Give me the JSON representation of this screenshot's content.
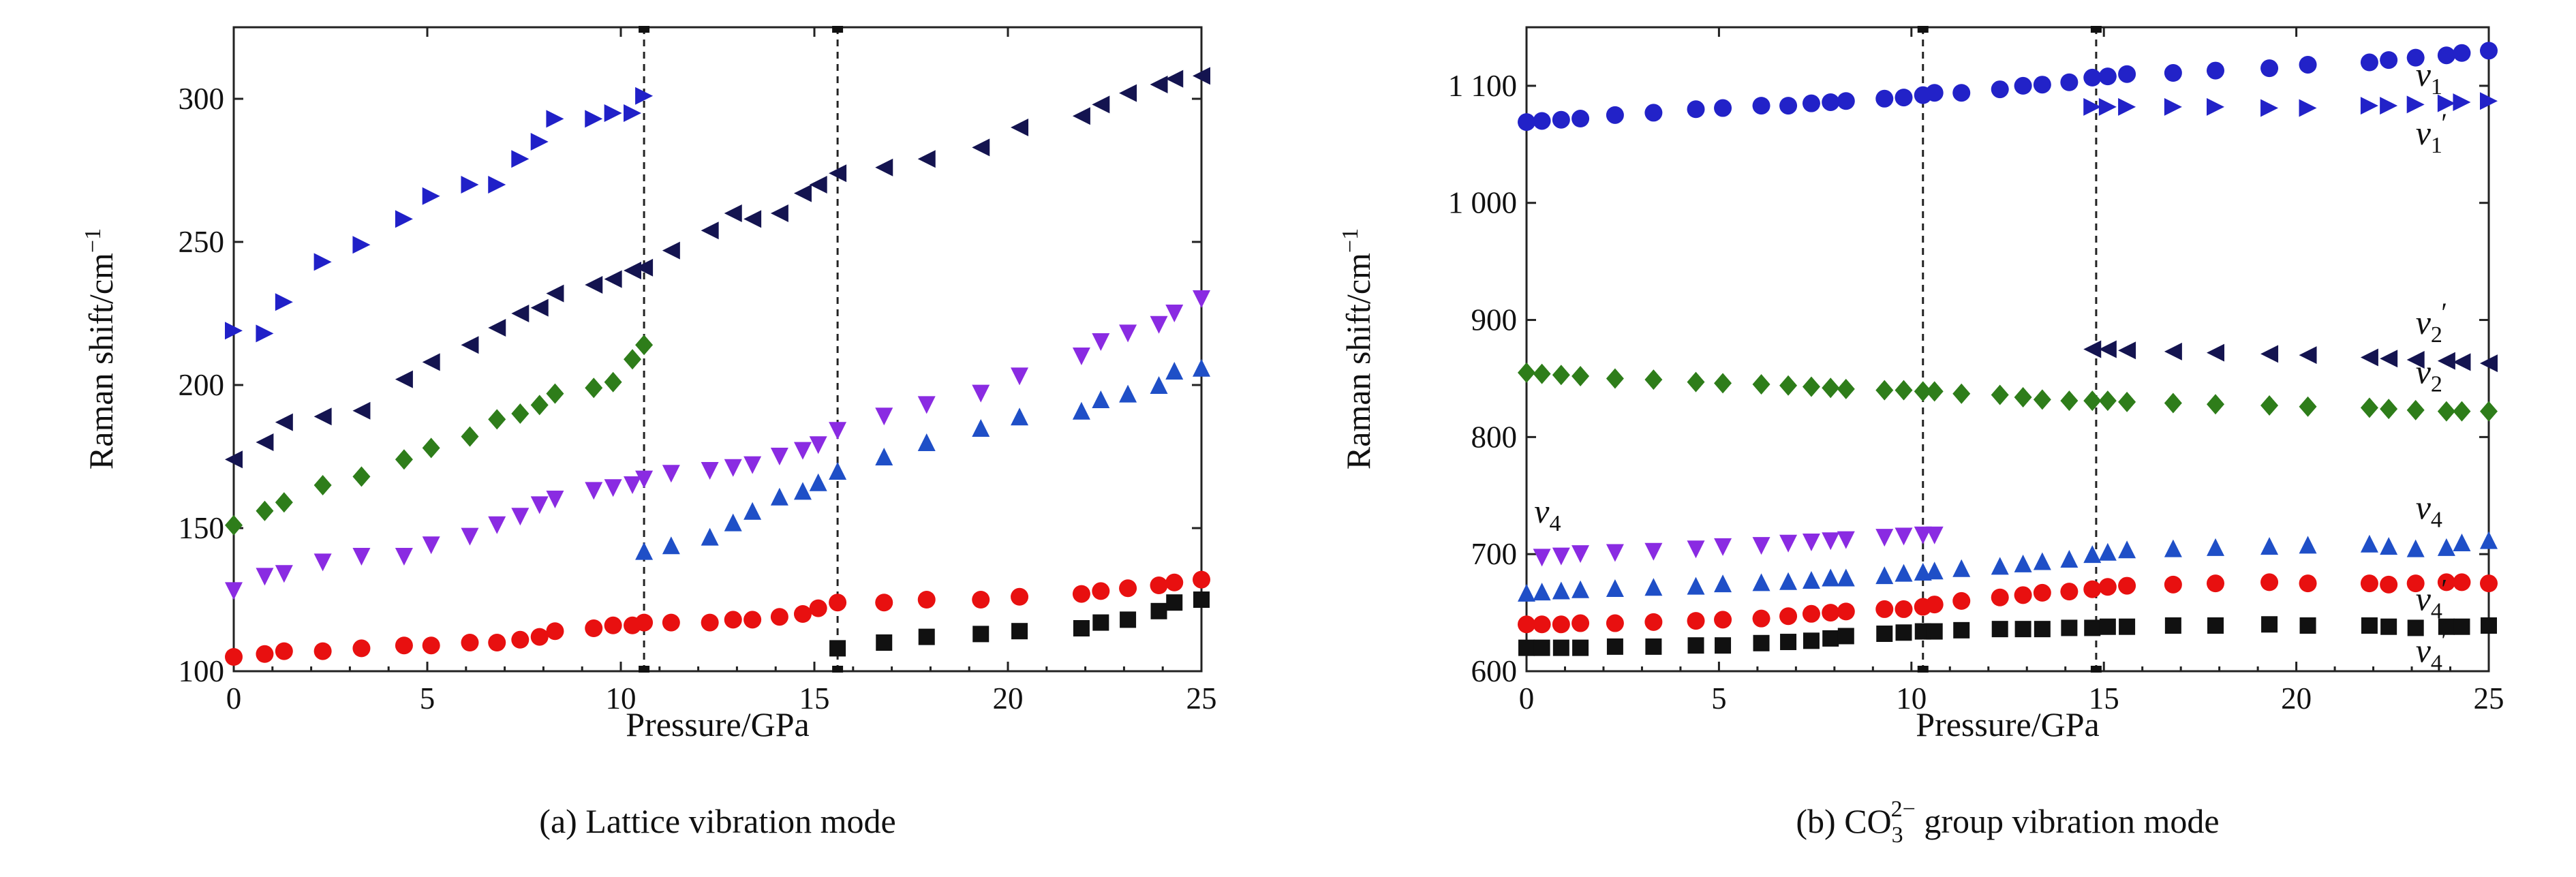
{
  "chart_data": [
    {
      "type": "scatter",
      "panel": "a",
      "caption": "(a) Lattice vibration mode",
      "xlabel": "Pressure/GPa",
      "ylabel": "Raman shift/cm",
      "ylabel_sup": "−1",
      "xlim": [
        0,
        25
      ],
      "ylim": [
        100,
        325
      ],
      "xticks": [
        0,
        5,
        10,
        15,
        20,
        25
      ],
      "yticks": [
        100,
        150,
        200,
        250,
        300
      ],
      "ytick_labels": [
        "100",
        "150",
        "200",
        "250",
        "300"
      ],
      "dashed_lines_x": [
        10.6,
        15.6
      ],
      "series": [
        {
          "marker": "triangle-right",
          "color": "#2020c8",
          "x": [
            0,
            0.8,
            1.3,
            2.3,
            3.3,
            4.4,
            5.1,
            6.1,
            6.8,
            7.4,
            7.9,
            8.3,
            9.3,
            9.8,
            10.3,
            10.6
          ],
          "y": [
            219,
            218,
            229,
            243,
            249,
            258,
            266,
            270,
            270,
            279,
            285,
            293,
            293,
            295,
            295,
            301
          ]
        },
        {
          "marker": "triangle-left",
          "color": "#141450",
          "x": [
            0,
            0.8,
            1.3,
            2.3,
            3.3,
            4.4,
            5.1,
            6.1,
            6.8,
            7.4,
            7.9,
            8.3,
            9.3,
            9.8,
            10.3,
            10.6,
            11.3,
            12.3,
            12.9,
            13.4,
            14.1,
            14.7,
            15.1,
            15.6,
            16.8,
            17.9,
            19.3,
            20.3,
            21.9,
            22.4,
            23.1,
            23.9,
            24.3,
            25
          ],
          "y": [
            174,
            180,
            187,
            189,
            191,
            202,
            208,
            214,
            220,
            225,
            227,
            232,
            235,
            237,
            240,
            241,
            247,
            254,
            260,
            258,
            260,
            267,
            270,
            274,
            276,
            279,
            283,
            290,
            294,
            298,
            302,
            305,
            307,
            308
          ]
        },
        {
          "marker": "diamond",
          "color": "#2e7d1a",
          "x": [
            0,
            0.8,
            1.3,
            2.3,
            3.3,
            4.4,
            5.1,
            6.1,
            6.8,
            7.4,
            7.9,
            8.3,
            9.3,
            9.8,
            10.3,
            10.6
          ],
          "y": [
            151,
            156,
            159,
            165,
            168,
            174,
            178,
            182,
            188,
            190,
            193,
            197,
            199,
            201,
            209,
            214
          ]
        },
        {
          "marker": "triangle-down",
          "color": "#8a2be2",
          "x": [
            0,
            0.8,
            1.3,
            2.3,
            3.3,
            4.4,
            5.1,
            6.1,
            6.8,
            7.4,
            7.9,
            8.3,
            9.3,
            9.8,
            10.3,
            10.6,
            11.3,
            12.3,
            12.9,
            13.4,
            14.1,
            14.7,
            15.1,
            15.6,
            16.8,
            17.9,
            19.3,
            20.3,
            21.9,
            22.4,
            23.1,
            23.9,
            24.3,
            25
          ],
          "y": [
            128,
            133,
            134,
            138,
            140,
            140,
            144,
            147,
            151,
            154,
            158,
            160,
            163,
            164,
            165,
            167,
            169,
            170,
            171,
            172,
            175,
            177,
            179,
            184,
            189,
            193,
            197,
            203,
            210,
            215,
            218,
            221,
            225,
            230
          ]
        },
        {
          "marker": "triangle-up",
          "color": "#1f4fc7",
          "x": [
            10.6,
            11.3,
            12.3,
            12.9,
            13.4,
            14.1,
            14.7,
            15.1,
            15.6,
            16.8,
            17.9,
            19.3,
            20.3,
            21.9,
            22.4,
            23.1,
            23.9,
            24.3,
            25
          ],
          "y": [
            142,
            144,
            147,
            152,
            156,
            161,
            163,
            166,
            170,
            175,
            180,
            185,
            189,
            191,
            195,
            197,
            200,
            205,
            206
          ]
        },
        {
          "marker": "circle",
          "color": "#e81010",
          "x": [
            0,
            0.8,
            1.3,
            2.3,
            3.3,
            4.4,
            5.1,
            6.1,
            6.8,
            7.4,
            7.9,
            8.3,
            9.3,
            9.8,
            10.3,
            10.6,
            11.3,
            12.3,
            12.9,
            13.4,
            14.1,
            14.7,
            15.1,
            15.6,
            16.8,
            17.9,
            19.3,
            20.3,
            21.9,
            22.4,
            23.1,
            23.9,
            24.3,
            25
          ],
          "y": [
            105,
            106,
            107,
            107,
            108,
            109,
            109,
            110,
            110,
            111,
            112,
            114,
            115,
            116,
            116,
            117,
            117,
            117,
            118,
            118,
            119,
            120,
            122,
            124,
            124,
            125,
            125,
            126,
            127,
            128,
            129,
            130,
            131,
            132
          ]
        },
        {
          "marker": "square",
          "color": "#111111",
          "x": [
            15.6,
            16.8,
            17.9,
            19.3,
            20.3,
            21.9,
            22.4,
            23.1,
            23.9,
            24.3,
            25
          ],
          "y": [
            108,
            110,
            112,
            113,
            114,
            115,
            117,
            118,
            121,
            124,
            125
          ]
        }
      ]
    },
    {
      "type": "scatter",
      "panel": "b",
      "caption_prefix": "(b) CO",
      "caption_sub": "3",
      "caption_sup": "2−",
      "caption_suffix": " group vibration mode",
      "xlabel": "Pressure/GPa",
      "ylabel": "Raman shift/cm",
      "ylabel_sup": "−1",
      "xlim": [
        0,
        25
      ],
      "ylim": [
        600,
        1150
      ],
      "xticks": [
        0,
        5,
        10,
        15,
        20,
        25
      ],
      "yticks": [
        600,
        700,
        800,
        900,
        1000,
        1100
      ],
      "ytick_labels": [
        "600",
        "700",
        "800",
        "900",
        "1 000",
        "1 100"
      ],
      "dashed_lines_x": [
        10.3,
        14.8
      ],
      "series": [
        {
          "marker": "circle",
          "color": "#2222c8",
          "x": [
            0,
            0.4,
            0.9,
            1.4,
            2.3,
            3.3,
            4.4,
            5.1,
            6.1,
            6.8,
            7.4,
            7.9,
            8.3,
            9.3,
            9.8,
            10.3,
            10.6,
            11.3,
            12.3,
            12.9,
            13.4,
            14.1,
            14.7,
            15.1,
            15.6,
            16.8,
            17.9,
            19.3,
            20.3,
            21.9,
            22.4,
            23.1,
            23.9,
            24.3,
            25
          ],
          "y": [
            1069,
            1070,
            1071,
            1072,
            1075,
            1077,
            1080,
            1081,
            1083,
            1083,
            1085,
            1086,
            1087,
            1089,
            1090,
            1092,
            1094,
            1094,
            1097,
            1100,
            1101,
            1103,
            1107,
            1108,
            1110,
            1111,
            1113,
            1115,
            1118,
            1120,
            1122,
            1124,
            1126,
            1128,
            1130
          ]
        },
        {
          "marker": "triangle-right",
          "color": "#2222c8",
          "x": [
            14.7,
            15.1,
            15.6,
            16.8,
            17.9,
            19.3,
            20.3,
            21.9,
            22.4,
            23.1,
            23.9,
            24.3,
            25
          ],
          "y": [
            1082,
            1082,
            1082,
            1082,
            1082,
            1081,
            1081,
            1083,
            1083,
            1084,
            1085,
            1086,
            1087
          ]
        },
        {
          "marker": "triangle-left",
          "color": "#141450",
          "x": [
            14.7,
            15.1,
            15.6,
            16.8,
            17.9,
            19.3,
            20.3,
            21.9,
            22.4,
            23.1,
            23.9,
            24.3,
            25
          ],
          "y": [
            875,
            875,
            874,
            873,
            872,
            871,
            870,
            868,
            867,
            866,
            865,
            864,
            863
          ]
        },
        {
          "marker": "diamond",
          "color": "#2e7d1a",
          "x": [
            0,
            0.4,
            0.9,
            1.4,
            2.3,
            3.3,
            4.4,
            5.1,
            6.1,
            6.8,
            7.4,
            7.9,
            8.3,
            9.3,
            9.8,
            10.3,
            10.6,
            11.3,
            12.3,
            12.9,
            13.4,
            14.1,
            14.7,
            15.1,
            15.6,
            16.8,
            17.9,
            19.3,
            20.3,
            21.9,
            22.4,
            23.1,
            23.9,
            24.3,
            25
          ],
          "y": [
            855,
            854,
            853,
            852,
            850,
            849,
            847,
            846,
            845,
            844,
            843,
            842,
            841,
            840,
            840,
            839,
            839,
            837,
            836,
            834,
            832,
            831,
            831,
            831,
            830,
            829,
            828,
            827,
            826,
            825,
            824,
            823,
            822,
            822,
            822
          ]
        },
        {
          "marker": "triangle-down",
          "color": "#8a2be2",
          "x": [
            0.4,
            0.9,
            1.4,
            2.3,
            3.3,
            4.4,
            5.1,
            6.1,
            6.8,
            7.4,
            7.9,
            8.3,
            9.3,
            9.8,
            10.3,
            10.6
          ],
          "y": [
            697,
            698,
            700,
            701,
            702,
            704,
            706,
            707,
            709,
            710,
            711,
            712,
            714,
            715,
            716,
            716
          ]
        },
        {
          "marker": "triangle-up",
          "color": "#1f4fc7",
          "x": [
            0,
            0.4,
            0.9,
            1.4,
            2.3,
            3.3,
            4.4,
            5.1,
            6.1,
            6.8,
            7.4,
            7.9,
            8.3,
            9.3,
            9.8,
            10.3,
            10.6,
            11.3,
            12.3,
            12.9,
            13.4,
            14.1,
            14.7,
            15.1,
            15.6,
            16.8,
            17.9,
            19.3,
            20.3,
            21.9,
            22.4,
            23.1,
            23.9,
            24.3,
            25
          ],
          "y": [
            667,
            668,
            669,
            670,
            671,
            672,
            673,
            675,
            676,
            677,
            678,
            680,
            680,
            682,
            684,
            685,
            686,
            688,
            690,
            692,
            694,
            696,
            700,
            702,
            704,
            705,
            706,
            707,
            708,
            709,
            707,
            705,
            706,
            710,
            712
          ]
        },
        {
          "marker": "circle",
          "color": "#e81010",
          "x": [
            0,
            0.4,
            0.9,
            1.4,
            2.3,
            3.3,
            4.4,
            5.1,
            6.1,
            6.8,
            7.4,
            7.9,
            8.3,
            9.3,
            9.8,
            10.3,
            10.6,
            11.3,
            12.3,
            12.9,
            13.4,
            14.1,
            14.7,
            15.1,
            15.6,
            16.8,
            17.9,
            19.3,
            20.3,
            21.9,
            22.4,
            23.1,
            23.9,
            24.3,
            25
          ],
          "y": [
            640,
            640,
            640,
            641,
            641,
            642,
            643,
            644,
            645,
            647,
            649,
            650,
            651,
            653,
            653,
            655,
            657,
            660,
            663,
            665,
            667,
            668,
            670,
            672,
            673,
            674,
            675,
            676,
            675,
            675,
            674,
            675,
            676,
            676,
            675
          ]
        },
        {
          "marker": "square",
          "color": "#111111",
          "x": [
            0,
            0.4,
            0.9,
            1.4,
            2.3,
            3.3,
            4.4,
            5.1,
            6.1,
            6.8,
            7.4,
            7.9,
            8.3,
            9.3,
            9.8,
            10.3,
            10.6,
            11.3,
            12.3,
            12.9,
            13.4,
            14.1,
            14.7,
            15.1,
            15.6,
            16.8,
            17.9,
            19.3,
            20.3,
            21.9,
            22.4,
            23.1,
            23.9,
            24.3,
            25
          ],
          "y": [
            620,
            620,
            620,
            620,
            621,
            621,
            622,
            622,
            624,
            625,
            626,
            628,
            630,
            632,
            633,
            634,
            634,
            635,
            636,
            636,
            636,
            637,
            637,
            638,
            638,
            639,
            639,
            640,
            639,
            639,
            638,
            637,
            638,
            638,
            639
          ]
        }
      ],
      "mode_labels": [
        {
          "base": "ν",
          "sub": "1",
          "prime": "",
          "x": 23.1,
          "y": 1100
        },
        {
          "base": "ν",
          "sub": "1",
          "prime": "′",
          "x": 23.1,
          "y": 1050
        },
        {
          "base": "ν",
          "sub": "2",
          "prime": "′",
          "x": 23.1,
          "y": 888
        },
        {
          "base": "ν",
          "sub": "2",
          "prime": "",
          "x": 23.1,
          "y": 846
        },
        {
          "base": "ν",
          "sub": "4",
          "prime": "",
          "x": 23.1,
          "y": 730
        },
        {
          "base": "ν",
          "sub": "4",
          "prime": "′",
          "x": 23.1,
          "y": 652
        },
        {
          "base": "ν",
          "sub": "4",
          "prime": "′",
          "x": 23.1,
          "y": 608
        },
        {
          "base": "ν",
          "sub": "4",
          "prime": "",
          "x": 0.2,
          "y": 727
        }
      ]
    }
  ]
}
